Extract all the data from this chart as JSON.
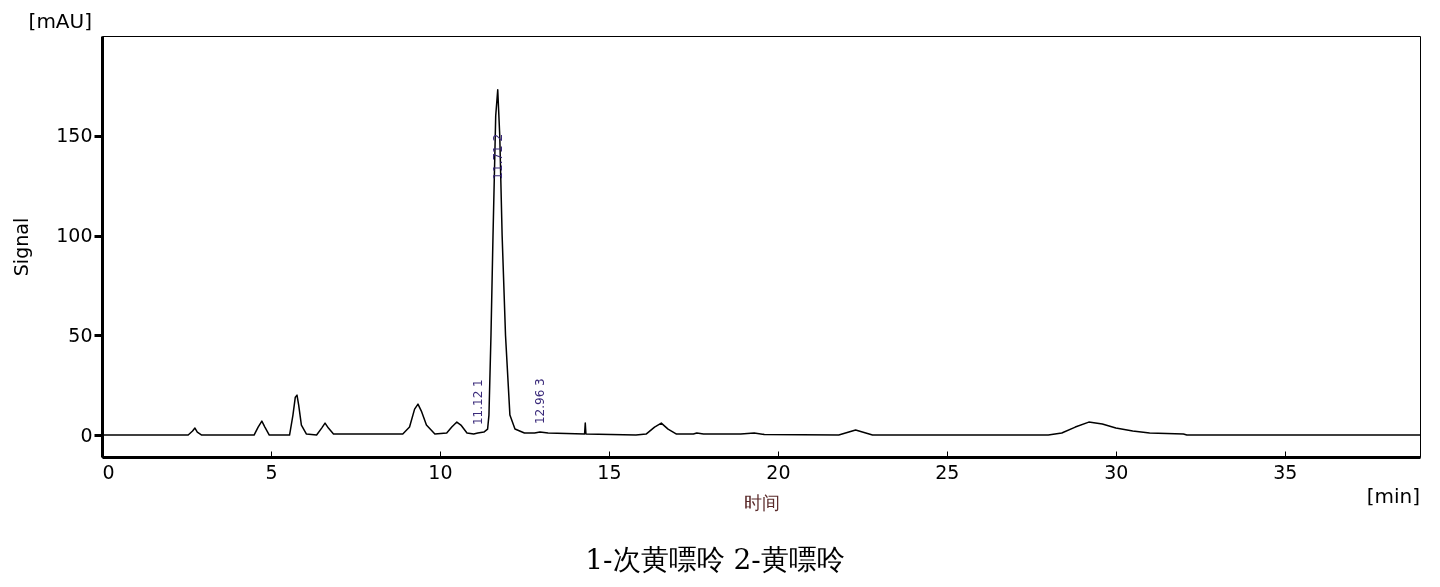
{
  "chart_data": {
    "type": "line",
    "xlabel": "时间",
    "ylabel": "Signal",
    "xlim": [
      0,
      39
    ],
    "ylim": [
      -11,
      200
    ],
    "xticks": [
      0,
      5,
      10,
      15,
      20,
      25,
      30,
      35
    ],
    "yticks": [
      0,
      50,
      100,
      150
    ],
    "series": [
      {
        "color": "#000000",
        "x": [
          0,
          2.55,
          2.68,
          2.75,
          2.82,
          2.95,
          4.5,
          4.62,
          4.73,
          4.82,
          4.95,
          5.55,
          5.65,
          5.72,
          5.77,
          5.82,
          5.9,
          6.05,
          6.35,
          6.5,
          6.6,
          6.7,
          6.85,
          7.5,
          8.9,
          9.1,
          9.25,
          9.35,
          9.45,
          9.6,
          9.85,
          10.2,
          10.35,
          10.5,
          10.62,
          10.8,
          11.0,
          11.12,
          11.3,
          11.41,
          11.45,
          11.51,
          11.57,
          11.65,
          11.71,
          11.77,
          11.84,
          11.94,
          12.07,
          12.22,
          12.5,
          12.8,
          12.96,
          13.2,
          14.28,
          14.3,
          14.32,
          15.8,
          16.1,
          16.35,
          16.55,
          16.75,
          17.0,
          17.5,
          17.6,
          17.8,
          18.9,
          19.3,
          19.6,
          21.8,
          22.1,
          22.3,
          22.5,
          22.8,
          28.0,
          28.4,
          28.8,
          29.2,
          29.6,
          30.0,
          30.5,
          31.0,
          32.0,
          32.1,
          39
        ],
        "values": [
          0,
          0,
          2,
          3.5,
          1.5,
          0,
          0,
          4,
          7,
          4,
          0,
          0,
          10,
          19,
          20,
          15,
          5,
          0.5,
          0,
          3.5,
          6,
          3.5,
          0.5,
          0.5,
          0.5,
          4,
          13,
          15.5,
          12,
          5,
          0.5,
          1,
          4,
          6.5,
          5,
          1,
          0.5,
          1,
          1.5,
          3,
          10,
          50,
          100,
          160,
          173,
          150,
          100,
          50,
          10,
          3,
          1,
          1,
          1.5,
          1,
          0.5,
          6,
          0.5,
          0,
          0.5,
          4,
          6,
          3,
          0.5,
          0.5,
          1,
          0.5,
          0.5,
          1,
          0.3,
          0,
          1.5,
          2.5,
          1.5,
          0,
          0,
          1,
          4,
          6.5,
          5.5,
          3.5,
          2,
          1,
          0.5,
          0,
          0
        ]
      }
    ],
    "annotations": [
      {
        "text": "11.12  1",
        "x": 11.12,
        "y": 1
      },
      {
        "text": "11.71  2",
        "x": 11.71,
        "y": 124
      },
      {
        "text": "12.96  3",
        "x": 12.96,
        "y": 1.5
      },
      "[mAU]",
      "[min]",
      "1-次黄嘌呤 2-黄嘌呤"
    ]
  }
}
